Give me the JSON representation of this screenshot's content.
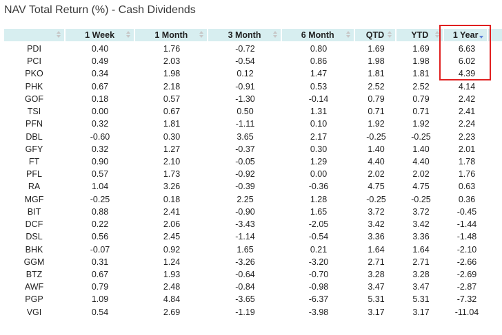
{
  "title": "NAV Total Return (%) - Cash Dividends",
  "columns": [
    "",
    "1 Week",
    "1 Month",
    "3 Month",
    "6 Month",
    "QTD",
    "YTD",
    "1 Year",
    ""
  ],
  "sort_column": "1 Year",
  "sort_direction": "descending",
  "highlight_color": "#e01f1f",
  "header_bg": "#d7eef0",
  "rows": [
    [
      "PDI",
      "0.40",
      "1.76",
      "-0.72",
      "0.80",
      "1.69",
      "1.69",
      "6.63"
    ],
    [
      "PCI",
      "0.49",
      "2.03",
      "-0.54",
      "0.86",
      "1.98",
      "1.98",
      "6.02"
    ],
    [
      "PKO",
      "0.34",
      "1.98",
      "0.12",
      "1.47",
      "1.81",
      "1.81",
      "4.39"
    ],
    [
      "PHK",
      "0.67",
      "2.18",
      "-0.91",
      "0.53",
      "2.52",
      "2.52",
      "4.14"
    ],
    [
      "GOF",
      "0.18",
      "0.57",
      "-1.30",
      "-0.14",
      "0.79",
      "0.79",
      "2.42"
    ],
    [
      "TSI",
      "0.00",
      "0.67",
      "0.50",
      "1.31",
      "0.71",
      "0.71",
      "2.41"
    ],
    [
      "PFN",
      "0.32",
      "1.81",
      "-1.11",
      "0.10",
      "1.92",
      "1.92",
      "2.24"
    ],
    [
      "DBL",
      "-0.60",
      "0.30",
      "3.65",
      "2.17",
      "-0.25",
      "-0.25",
      "2.23"
    ],
    [
      "GFY",
      "0.32",
      "1.27",
      "-0.37",
      "0.30",
      "1.40",
      "1.40",
      "2.01"
    ],
    [
      "FT",
      "0.90",
      "2.10",
      "-0.05",
      "1.29",
      "4.40",
      "4.40",
      "1.78"
    ],
    [
      "PFL",
      "0.57",
      "1.73",
      "-0.92",
      "0.00",
      "2.02",
      "2.02",
      "1.76"
    ],
    [
      "RA",
      "1.04",
      "3.26",
      "-0.39",
      "-0.36",
      "4.75",
      "4.75",
      "0.63"
    ],
    [
      "MGF",
      "-0.25",
      "0.18",
      "2.25",
      "1.28",
      "-0.25",
      "-0.25",
      "0.36"
    ],
    [
      "BIT",
      "0.88",
      "2.41",
      "-0.90",
      "1.65",
      "3.72",
      "3.72",
      "-0.45"
    ],
    [
      "DCF",
      "0.22",
      "2.06",
      "-3.43",
      "-2.05",
      "3.42",
      "3.42",
      "-1.44"
    ],
    [
      "DSL",
      "0.56",
      "2.45",
      "-1.14",
      "-0.54",
      "3.36",
      "3.36",
      "-1.48"
    ],
    [
      "BHK",
      "-0.07",
      "0.92",
      "1.65",
      "0.21",
      "1.64",
      "1.64",
      "-2.10"
    ],
    [
      "GGM",
      "0.31",
      "1.24",
      "-3.26",
      "-3.20",
      "2.71",
      "2.71",
      "-2.66"
    ],
    [
      "BTZ",
      "0.67",
      "1.93",
      "-0.64",
      "-0.70",
      "3.28",
      "3.28",
      "-2.69"
    ],
    [
      "AWF",
      "0.79",
      "2.48",
      "-0.84",
      "-0.98",
      "3.47",
      "3.47",
      "-2.87"
    ],
    [
      "PGP",
      "1.09",
      "4.84",
      "-3.65",
      "-6.37",
      "5.31",
      "5.31",
      "-7.32"
    ],
    [
      "VGI",
      "0.54",
      "2.69",
      "-1.19",
      "-3.98",
      "3.17",
      "3.17",
      "-11.04"
    ]
  ]
}
